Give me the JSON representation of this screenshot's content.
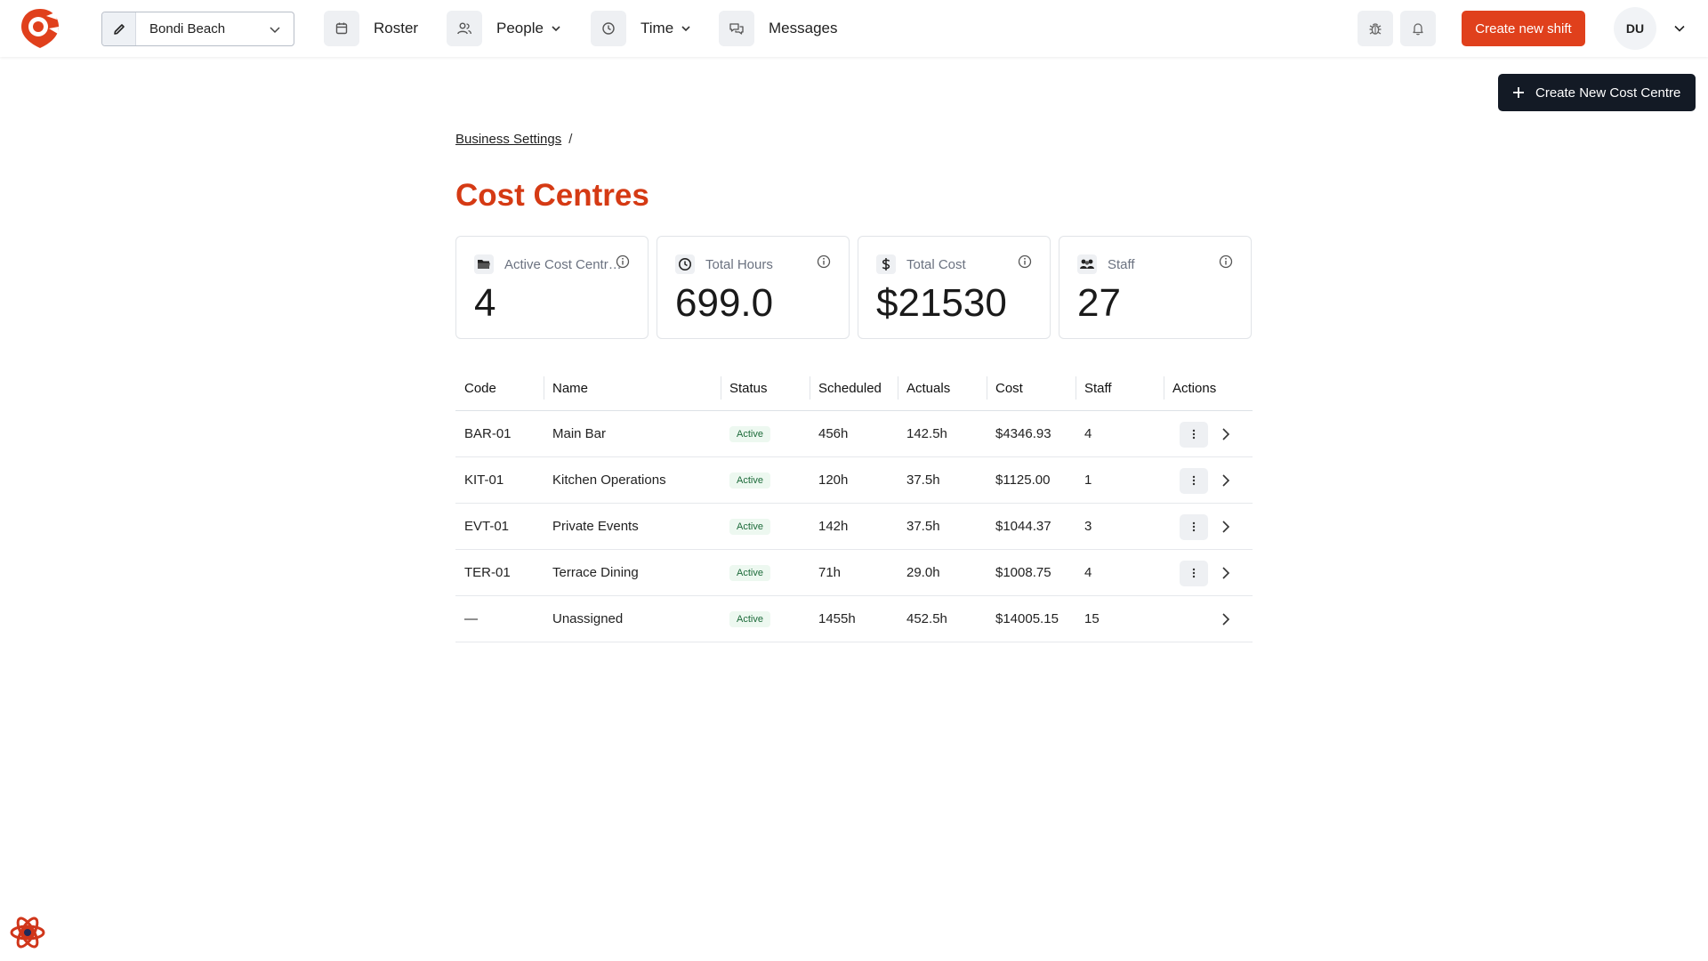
{
  "app": {
    "location": "Bondi Beach",
    "nav": [
      {
        "label": "Roster",
        "icon": "calendar-icon",
        "has_dropdown": false
      },
      {
        "label": "People",
        "icon": "people-icon",
        "has_dropdown": true
      },
      {
        "label": "Time",
        "icon": "clock-icon",
        "has_dropdown": true
      },
      {
        "label": "Messages",
        "icon": "chat-icon",
        "has_dropdown": false
      }
    ],
    "create_shift_label": "Create new shift",
    "user_initials": "DU",
    "accent_color": "#e0401c",
    "title_color": "#d53a14"
  },
  "page": {
    "breadcrumb": [
      "Business Settings"
    ],
    "breadcrumb_sep": "/",
    "title": "Cost Centres",
    "primary_action": "Create New Cost Centre"
  },
  "stats": [
    {
      "label": "Active Cost Centres",
      "value": "4",
      "icon": "folder-icon"
    },
    {
      "label": "Total Hours",
      "value": "699.0",
      "icon": "clock-icon"
    },
    {
      "label": "Total Cost",
      "value": "$21530",
      "icon": "dollar-icon"
    },
    {
      "label": "Staff",
      "value": "27",
      "icon": "staff-icon"
    }
  ],
  "table": {
    "columns": [
      "Code",
      "Name",
      "Status",
      "Scheduled",
      "Actuals",
      "Cost",
      "Staff",
      "Actions"
    ],
    "rows": [
      {
        "code": "BAR-01",
        "name": "Main Bar",
        "status": "Active",
        "scheduled": "456h",
        "actuals": "142.5h",
        "cost": "$4346.93",
        "staff": "4",
        "has_menu": true
      },
      {
        "code": "KIT-01",
        "name": "Kitchen Operations",
        "status": "Active",
        "scheduled": "120h",
        "actuals": "37.5h",
        "cost": "$1125.00",
        "staff": "1",
        "has_menu": true
      },
      {
        "code": "EVT-01",
        "name": "Private Events",
        "status": "Active",
        "scheduled": "142h",
        "actuals": "37.5h",
        "cost": "$1044.37",
        "staff": "3",
        "has_menu": true
      },
      {
        "code": "TER-01",
        "name": "Terrace Dining",
        "status": "Active",
        "scheduled": "71h",
        "actuals": "29.0h",
        "cost": "$1008.75",
        "staff": "4",
        "has_menu": true
      },
      {
        "code": "—",
        "name": "Unassigned",
        "status": "Active",
        "scheduled": "1455h",
        "actuals": "452.5h",
        "cost": "$14005.15",
        "staff": "15",
        "has_menu": false
      }
    ]
  }
}
